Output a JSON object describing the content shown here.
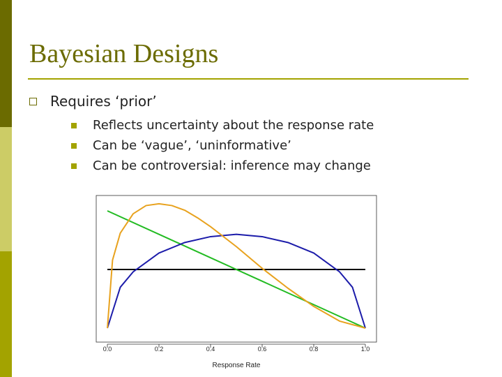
{
  "slide": {
    "title": "Bayesian Designs",
    "bullet": "Requires ‘prior’",
    "subbullets": [
      "Reflects uncertainty about the response rate",
      "Can be ‘vague’, ‘uninformative’",
      "Can be controversial:  inference may change"
    ]
  },
  "chart_data": {
    "type": "line",
    "xlabel": "Response Rate",
    "xlim": [
      0,
      1
    ],
    "x_ticks": [
      "0.0",
      "0.2",
      "0.4",
      "0.6",
      "0.8",
      "1.0"
    ],
    "tick_values": [
      0,
      0.2,
      0.4,
      0.6,
      0.8,
      1.0
    ],
    "ylim": [
      0,
      2.2
    ],
    "series": [
      {
        "color": "#000000",
        "x": [
          0,
          1
        ],
        "y": [
          1,
          1
        ]
      },
      {
        "color": "#22bb22",
        "x": [
          0,
          1
        ],
        "y": [
          2,
          0
        ]
      },
      {
        "color": "#1c1caa",
        "x": [
          0,
          0.05,
          0.1,
          0.2,
          0.3,
          0.4,
          0.5,
          0.6,
          0.7,
          0.8,
          0.9,
          0.95,
          1.0
        ],
        "y": [
          0,
          0.697,
          0.96,
          1.28,
          1.46,
          1.56,
          1.6,
          1.56,
          1.46,
          1.28,
          0.96,
          0.697,
          0
        ]
      },
      {
        "color": "#e8a21e",
        "x": [
          0,
          0.02,
          0.05,
          0.1,
          0.15,
          0.2,
          0.25,
          0.3,
          0.35,
          0.4,
          0.5,
          0.6,
          0.7,
          0.8,
          0.9,
          1.0
        ],
        "y": [
          0,
          1.16,
          1.62,
          1.95,
          2.09,
          2.12,
          2.09,
          2.01,
          1.88,
          1.73,
          1.39,
          1.02,
          0.68,
          0.37,
          0.12,
          0
        ]
      }
    ]
  }
}
